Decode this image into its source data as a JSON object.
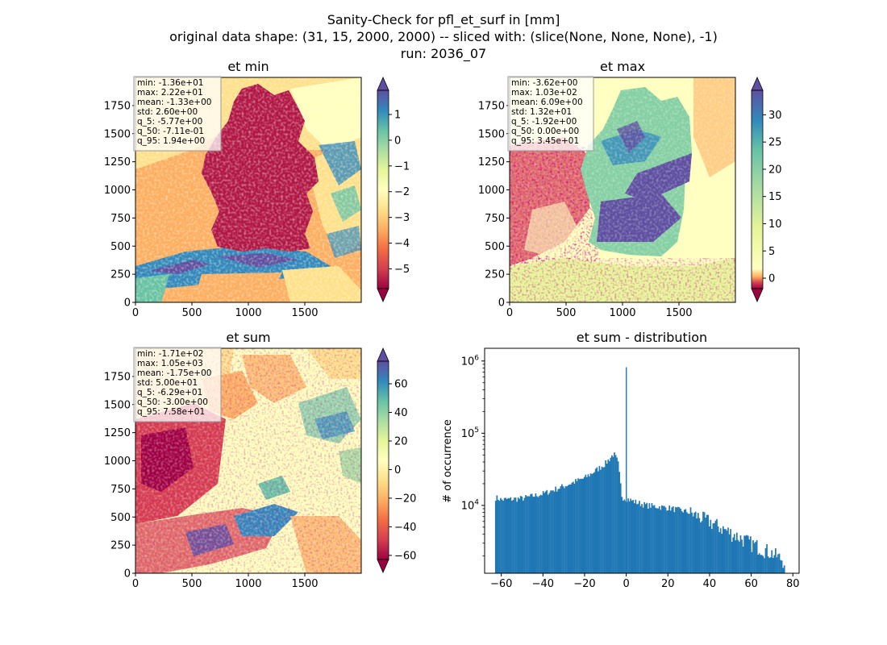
{
  "figure": {
    "title_lines": [
      "Sanity-Check for pfl_et_surf in [mm]",
      "original data shape: (31, 15, 2000, 2000) -- sliced with: (slice(None, None, None), -1)",
      "run: 2036_07"
    ]
  },
  "chart_data": [
    {
      "type": "heatmap",
      "title": "et min",
      "xlim": [
        0,
        2000
      ],
      "ylim": [
        0,
        2000
      ],
      "x_ticks": [
        0,
        500,
        1000,
        1500
      ],
      "y_ticks": [
        0,
        250,
        500,
        750,
        1000,
        1250,
        1500,
        1750
      ],
      "colorbar": {
        "ticks": [
          1,
          0,
          -1,
          -2,
          -3,
          -4,
          -5
        ],
        "range": [
          -5.77,
          1.94
        ],
        "colormap": "Spectral",
        "extend": "both"
      },
      "stats": [
        "min: -1.36e+01",
        "max: 2.22e+01",
        "mean: -1.33e+00",
        "std: 2.60e+00",
        "q_5: -5.77e+00",
        "q_50: -7.11e-01",
        "q_95: 1.94e+00"
      ]
    },
    {
      "type": "heatmap",
      "title": "et max",
      "xlim": [
        0,
        2000
      ],
      "ylim": [
        0,
        2000
      ],
      "x_ticks": [
        0,
        500,
        1000,
        1500
      ],
      "y_ticks": [
        0,
        250,
        500,
        750,
        1000,
        1250,
        1500,
        1750
      ],
      "colorbar": {
        "ticks": [
          30,
          25,
          20,
          15,
          10,
          5,
          0
        ],
        "range": [
          -1.92,
          34.5
        ],
        "colormap": "Spectral",
        "extend": "both"
      },
      "stats": [
        "min: -3.62e+00",
        "max: 1.03e+02",
        "mean: 6.09e+00",
        "std: 1.32e+01",
        "q_5: -1.92e+00",
        "q_50: 0.00e+00",
        "q_95: 3.45e+01"
      ]
    },
    {
      "type": "heatmap",
      "title": "et sum",
      "xlim": [
        0,
        2000
      ],
      "ylim": [
        0,
        2000
      ],
      "x_ticks": [
        0,
        500,
        1000,
        1500
      ],
      "y_ticks": [
        0,
        250,
        500,
        750,
        1000,
        1250,
        1500,
        1750
      ],
      "colorbar": {
        "ticks": [
          60,
          40,
          20,
          0,
          -20,
          -40,
          -60
        ],
        "range": [
          -62.9,
          75.8
        ],
        "colormap": "Spectral",
        "extend": "both"
      },
      "stats": [
        "min: -1.71e+02",
        "max: 1.05e+03",
        "mean: -1.75e+00",
        "std: 5.00e+01",
        "q_5: -6.29e+01",
        "q_50: -3.00e+00",
        "q_95: 7.58e+01"
      ]
    },
    {
      "type": "bar",
      "title": "et sum - distribution",
      "xlabel": "",
      "ylabel": "# of occurrence",
      "log_y": true,
      "xlim": [
        -68,
        83
      ],
      "ylim": [
        1150,
        1500000
      ],
      "x_ticks": [
        -60,
        -40,
        -20,
        0,
        20,
        40,
        60,
        80
      ],
      "y_ticks": [
        {
          "value": 10000,
          "label": "10^4"
        },
        {
          "value": 100000,
          "label": "10^5"
        },
        {
          "value": 1000000,
          "label": "10^6"
        }
      ],
      "color": "#1f77b4",
      "spike": {
        "x": 0,
        "y": 820000
      },
      "anchors": [
        [
          -63,
          13000
        ],
        [
          -60,
          12000
        ],
        [
          -50,
          12500
        ],
        [
          -40,
          14500
        ],
        [
          -30,
          18500
        ],
        [
          -20,
          24000
        ],
        [
          -15,
          30000
        ],
        [
          -10,
          38000
        ],
        [
          -6,
          52000
        ],
        [
          -4,
          40000
        ],
        [
          -2,
          13000
        ],
        [
          0,
          12500
        ],
        [
          5,
          11000
        ],
        [
          10,
          10000
        ],
        [
          20,
          9300
        ],
        [
          30,
          8100
        ],
        [
          40,
          6000
        ],
        [
          50,
          4200
        ],
        [
          60,
          3000
        ],
        [
          70,
          2200
        ],
        [
          76,
          1700
        ]
      ]
    }
  ]
}
